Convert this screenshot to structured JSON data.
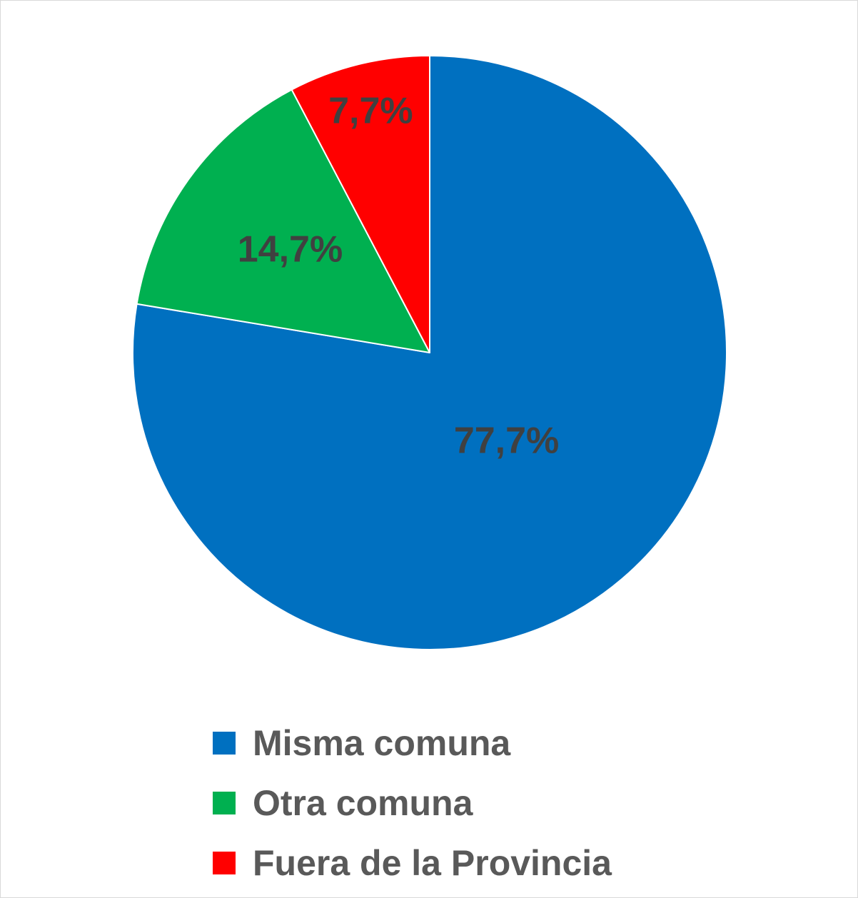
{
  "chart_data": {
    "type": "pie",
    "categories": [
      "Misma comuna",
      "Otra comuna",
      "Fuera de la Provincia"
    ],
    "values": [
      77.7,
      14.7,
      7.7
    ],
    "labels": [
      "77,7%",
      "14,7%",
      "7,7%"
    ],
    "colors": [
      "#0070C0",
      "#00B050",
      "#FF0000"
    ],
    "title": "",
    "legend_position": "bottom",
    "start_angle": "12 o'clock",
    "direction": "clockwise"
  }
}
